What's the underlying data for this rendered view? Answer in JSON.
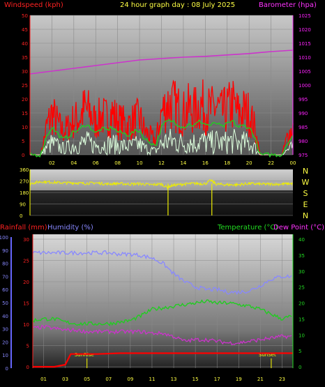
{
  "header": {
    "left_label": "Windspeed (kph)",
    "center_label": "24 hour graph day : 08 July 2025",
    "right_label": "Barometer (hpa)"
  },
  "footer_labels": {
    "rainfall": "Rainfall (mm)",
    "humidity": "Humidity (%)",
    "temperature": "Temperature (°C)",
    "dewpoint": "Dew Point (°C)"
  },
  "colors": {
    "wind": "#ff0000",
    "wind_avg": "#22cc22",
    "gust_white": "#ddffdd",
    "barometer": "#cc33cc",
    "direction": "#eeee00",
    "rain": "#ff0000",
    "humidity": "#8888ff",
    "temperature": "#22cc22",
    "dewpoint": "#cc33cc",
    "sun_marker": "#ffff00",
    "left_axis_text": "#ff2222",
    "right_axis_text": "#ff22ff",
    "temp_axis_text": "#22dd22",
    "hum_axis_text": "#8888ff"
  },
  "chart_data": [
    {
      "type": "line",
      "title": "24 hour graph day : 08 July 2025",
      "ylabel": "Windspeed (kph)",
      "y2label": "Barometer (hpa)",
      "x_ticks": [
        "02",
        "04",
        "06",
        "08",
        "10",
        "12",
        "14",
        "16",
        "18",
        "20",
        "22",
        "00"
      ],
      "x_range_hours": [
        0,
        24
      ],
      "ylim": [
        0,
        50
      ],
      "y_ticks": [
        0,
        5,
        10,
        15,
        20,
        25,
        30,
        35,
        40,
        45,
        50
      ],
      "y2lim": [
        975,
        1025
      ],
      "y2_ticks": [
        975,
        980,
        985,
        990,
        995,
        1000,
        1005,
        1010,
        1015,
        1020,
        1025
      ],
      "series": [
        {
          "name": "Barometer (hpa)",
          "axis": "right",
          "x": [
            0,
            2,
            4,
            6,
            8,
            10,
            12,
            14,
            16,
            18,
            20,
            22,
            24
          ],
          "y": [
            1004,
            1005,
            1006,
            1007,
            1008,
            1009,
            1009.5,
            1010,
            1010.3,
            1010.8,
            1011.3,
            1012,
            1012.5
          ]
        },
        {
          "name": "Windspeed (kph)",
          "axis": "left",
          "x": [
            0,
            0.5,
            1,
            1.5,
            2,
            2.5,
            3,
            3.5,
            4,
            4.5,
            5,
            5.5,
            6,
            6.5,
            7,
            7.5,
            8,
            8.5,
            9,
            9.5,
            10,
            10.5,
            11,
            11.5,
            12,
            12.5,
            13,
            13.5,
            14,
            14.5,
            15,
            15.5,
            16,
            16.5,
            17,
            17.5,
            18,
            18.5,
            19,
            19.5,
            20,
            20.5,
            21,
            22,
            23,
            23.5,
            24
          ],
          "y": [
            0,
            0,
            0,
            12,
            18,
            14,
            10,
            12,
            15,
            16,
            20,
            18,
            14,
            17,
            16,
            18,
            15,
            14,
            13,
            15,
            16,
            10,
            8,
            6,
            18,
            22,
            22,
            20,
            18,
            20,
            19,
            22,
            20,
            19,
            21,
            18,
            20,
            22,
            18,
            19,
            18,
            12,
            0,
            0,
            0,
            8,
            12
          ]
        }
      ]
    },
    {
      "type": "line",
      "ylabel": "Wind direction",
      "ylim": [
        0,
        360
      ],
      "y_ticks": [
        0,
        90,
        180,
        270,
        360
      ],
      "direction_labels": [
        "N",
        "W",
        "S",
        "E",
        "N"
      ],
      "x_range_hours": [
        0,
        24
      ],
      "series": [
        {
          "name": "Direction",
          "x": [
            0,
            1,
            2,
            3,
            4,
            5,
            6,
            7,
            8,
            9,
            10,
            11,
            12,
            12.5,
            13,
            14,
            15,
            16,
            16.5,
            17,
            18,
            19,
            20,
            21,
            22,
            23,
            24
          ],
          "y": [
            250,
            265,
            260,
            255,
            255,
            250,
            255,
            245,
            250,
            245,
            248,
            240,
            245,
            220,
            235,
            245,
            250,
            248,
            275,
            245,
            240,
            240,
            250,
            245,
            245,
            245,
            250
          ]
        }
      ]
    },
    {
      "type": "line",
      "ylabel": "Rainfall (mm) / Humidity (%)",
      "y2label": "Temperature (°C) / Dew Point (°C)",
      "x_range_hours": [
        0,
        24
      ],
      "humidity_ticks": [
        0,
        10,
        20,
        30,
        40,
        50,
        60,
        70,
        80,
        90,
        100
      ],
      "rain_ticks": [
        0,
        5,
        10,
        15,
        20,
        25,
        30
      ],
      "temp_ticks": [
        0,
        5,
        10,
        15,
        20,
        25,
        30,
        35,
        40
      ],
      "annotations": [
        {
          "text": "SunRise",
          "x": 5.0
        },
        {
          "text": "SunSet",
          "x": 22.0
        }
      ],
      "series": [
        {
          "name": "Humidity (%)",
          "axis": "humidity",
          "x": [
            0,
            1,
            2,
            3,
            4,
            5,
            6,
            7,
            8,
            9,
            10,
            11,
            12,
            13,
            14,
            15,
            16,
            17,
            18,
            19,
            20,
            21,
            22,
            23,
            24
          ],
          "y": [
            88,
            88,
            88,
            88,
            88,
            88,
            88,
            88,
            87,
            87,
            86,
            84,
            80,
            72,
            66,
            62,
            60,
            60,
            58,
            58,
            59,
            63,
            68,
            70,
            70
          ]
        },
        {
          "name": "Temperature (°C)",
          "axis": "temp",
          "x": [
            0,
            1,
            2,
            3,
            4,
            5,
            6,
            7,
            8,
            9,
            10,
            11,
            12,
            13,
            14,
            15,
            16,
            17,
            18,
            19,
            20,
            21,
            22,
            23,
            24
          ],
          "y": [
            14.5,
            15,
            15,
            14,
            13.5,
            13.5,
            13.5,
            13.5,
            14,
            14.5,
            16,
            18,
            18.5,
            19,
            19.5,
            20,
            20.5,
            20,
            20,
            19.5,
            19,
            18,
            16.5,
            15,
            16
          ]
        },
        {
          "name": "Dew Point (°C)",
          "axis": "temp",
          "x": [
            0,
            1,
            2,
            3,
            4,
            5,
            6,
            7,
            8,
            9,
            10,
            11,
            12,
            13,
            14,
            15,
            16,
            17,
            18,
            19,
            20,
            21,
            22,
            23,
            24
          ],
          "y": [
            12,
            12.5,
            12,
            11.5,
            11.5,
            11,
            11,
            11,
            11,
            11,
            11,
            10.5,
            10.5,
            9.5,
            8,
            8.5,
            8.5,
            8,
            7.5,
            7.5,
            8,
            8.5,
            9,
            9.5,
            9.5
          ]
        },
        {
          "name": "Rainfall (mm)",
          "axis": "rain",
          "x": [
            0,
            1,
            2,
            3,
            3.5,
            4,
            5,
            6,
            8,
            10,
            12,
            14,
            16,
            18,
            20,
            22,
            24
          ],
          "y": [
            0,
            0,
            0,
            0.5,
            3,
            3,
            3,
            3,
            3.2,
            3.2,
            3.2,
            3.2,
            3.2,
            3.2,
            3.2,
            3.2,
            3.2
          ]
        }
      ]
    }
  ]
}
